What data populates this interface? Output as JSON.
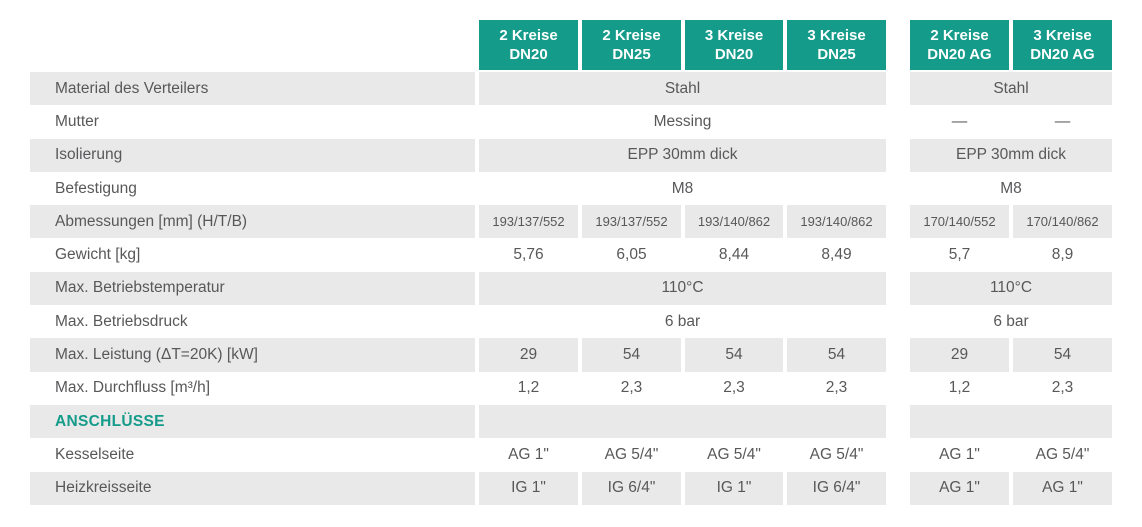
{
  "colors": {
    "accent_teal": "#149B8A",
    "stripe_gray": "#E9E9E9",
    "body_text": "#58585A"
  },
  "header": {
    "group1": [
      {
        "line1": "2 Kreise",
        "line2": "DN20"
      },
      {
        "line1": "2 Kreise",
        "line2": "DN25"
      },
      {
        "line1": "3 Kreise",
        "line2": "DN20"
      },
      {
        "line1": "3 Kreise",
        "line2": "DN25"
      }
    ],
    "group2": [
      {
        "line1": "2 Kreise",
        "line2": "DN20 AG"
      },
      {
        "line1": "3 Kreise",
        "line2": "DN20 AG"
      }
    ]
  },
  "rows": [
    {
      "label": "Material des Verteilers",
      "g1_span": "Stahl",
      "g2_span": "Stahl"
    },
    {
      "label": "Mutter",
      "g1_span": "Messing",
      "g2": [
        "—",
        "—"
      ]
    },
    {
      "label": "Isolierung",
      "g1_span": "EPP 30mm dick",
      "g2_span": "EPP 30mm dick"
    },
    {
      "label": "Befestigung",
      "g1_span": "M8",
      "g2_span": "M8"
    },
    {
      "label": "Abmessungen [mm] (H/T/B)",
      "g1": [
        "193/137/552",
        "193/137/552",
        "193/140/862",
        "193/140/862"
      ],
      "g2": [
        "170/140/552",
        "170/140/862"
      ]
    },
    {
      "label": "Gewicht [kg]",
      "g1": [
        "5,76",
        "6,05",
        "8,44",
        "8,49"
      ],
      "g2": [
        "5,7",
        "8,9"
      ]
    },
    {
      "label": "Max. Betriebstemperatur",
      "g1_span": "110°C",
      "g2_span": "110°C"
    },
    {
      "label": "Max. Betriebsdruck",
      "g1_span": "6 bar",
      "g2_span": "6 bar"
    },
    {
      "label": "Max. Leistung (ΔT=20K) [kW]",
      "g1": [
        "29",
        "54",
        "54",
        "54"
      ],
      "g2": [
        "29",
        "54"
      ]
    },
    {
      "label": "Max. Durchfluss [m³/h]",
      "g1": [
        "1,2",
        "2,3",
        "2,3",
        "2,3"
      ],
      "g2": [
        "1,2",
        "2,3"
      ]
    },
    {
      "label": "ANSCHLÜSSE",
      "section": true
    },
    {
      "label": "Kesselseite",
      "g1": [
        "AG 1\"",
        "AG 5/4\"",
        "AG 5/4\"",
        "AG 5/4\""
      ],
      "g2": [
        "AG 1\"",
        "AG 5/4\""
      ]
    },
    {
      "label": "Heizkreisseite",
      "g1": [
        "IG 1\"",
        "IG 6/4\"",
        "IG 1\"",
        "IG 6/4\""
      ],
      "g2": [
        "AG 1\"",
        "AG 1\""
      ]
    }
  ]
}
